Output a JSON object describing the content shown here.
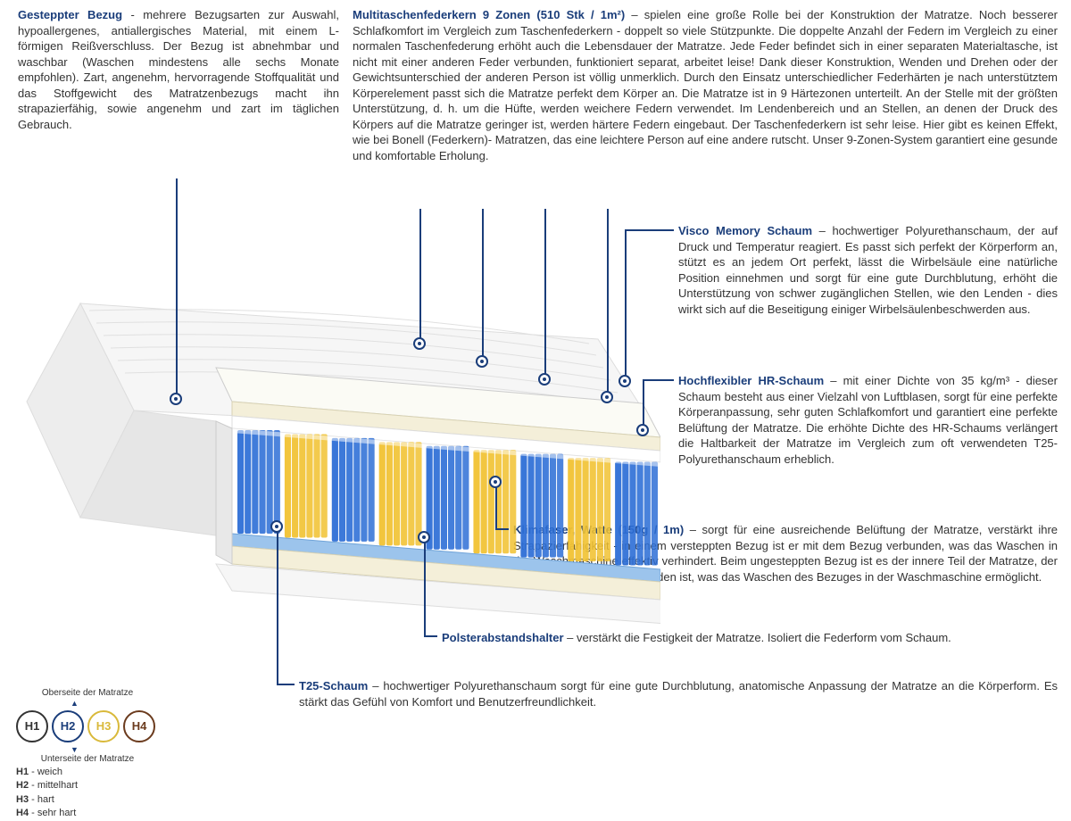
{
  "colors": {
    "title": "#1a3d7a",
    "text": "#333333",
    "line": "#1a3d7a",
    "spring_blue": "#2e6fd6",
    "spring_yellow": "#f1c233",
    "foam_cream": "#f4efd9",
    "foam_blue": "#9cc4ec",
    "cover": "#f2f2f2",
    "cover_shadow": "#dcdcdc"
  },
  "blocks": {
    "bezug": {
      "title": "Gesteppter Bezug",
      "text": " - mehrere Bezugsarten zur Auswahl, hypoallergenes, antiallergisches Material, mit einem L-förmigen Reißverschluss. Der Bezug ist abnehmbar  und waschbar (Waschen mindestens alle sechs Monate empfohlen). Zart, angenehm, hervorragende Stoffqualität und das Stoffgewicht des Matratzenbezugs macht ihn strapazierfähig, sowie angenehm und zart im täglichen Gebrauch."
    },
    "federkern": {
      "title": "Multitaschenfederkern 9 Zonen (510 Stk / 1m²)",
      "text": " –  spielen eine große Rolle bei der Konstruktion der Matratze. Noch besserer Schlafkomfort im Vergleich zum Taschenfederkern - doppelt so viele Stützpunkte. Die doppelte Anzahl der Federn im Vergleich zu einer normalen Taschenfederung erhöht auch die Lebensdauer der Matratze. Jede Feder befindet sich in einer separaten Materialtasche, ist nicht mit einer anderen Feder verbunden, funktioniert separat, arbeitet leise! Dank dieser Konstruktion, Wenden und Drehen oder der Gewichtsunterschied der anderen Person ist völlig unmerklich. Durch den Einsatz unterschiedlicher Federhärten je nach unterstütztem Körperelement passt sich die Matratze perfekt dem Körper an. Die Matratze ist in 9 Härtezonen unterteilt. An der Stelle mit der größten Unterstützung, d. h. um die Hüfte, werden weichere Federn verwendet. Im Lendenbereich und an Stellen, an denen der Druck des Körpers auf die Matratze geringer ist, werden härtere Federn eingebaut. Der Taschenfederkern ist sehr leise. Hier gibt es keinen Effekt, wie bei Bonell (Federkern)- Matratzen, das eine leichtere Person auf eine andere rutscht. Unser 9-Zonen-System garantiert eine gesunde und komfortable Erholung."
    },
    "visco": {
      "title": "Visco Memory Schaum",
      "text": " – hochwertiger Polyurethanschaum, der auf Druck und Temperatur reagiert. Es passt sich perfekt der Körperform an, stützt es an jedem Ort perfekt, lässt die Wirbelsäule eine natürliche Position einnehmen und sorgt für eine gute Durchblutung, erhöht die Unterstützung von schwer zugänglichen Stellen, wie den Lenden - dies wirkt sich auf die Beseitigung einiger  Wirbelsäulenbeschwerden aus."
    },
    "hr": {
      "title": "Hochflexibler HR-Schaum",
      "text": " –  mit einer Dichte von 35 kg/m³ - dieser Schaum besteht aus einer Vielzahl von Luftblasen, sorgt für eine perfekte Körperanpassung, sehr guten Schlafkomfort und garantiert eine perfekte Belüftung der Matratze. Die erhöhte Dichte des HR-Schaums verlängert die Haltbarkeit der Matratze im Vergleich zum oft verwendeten T25-Polyurethanschaum erheblich."
    },
    "klima": {
      "title": "Klimafaser, Watte (150g / 1m)",
      "text": " –  sorgt für eine ausreichende Belüftung der Matratze, verstärkt ihre Strapazierfähigkeit - in einem versteppten Bezug ist er mit dem Bezug verbunden, was das Waschen in der Waschmaschine effektiv verhindert. Beim ungesteppten Bezug ist es der innere Teil der Matratze, der nicht mit dem Bezug verbunden ist, was das Waschen des Bezuges in der Waschmaschine ermöglicht."
    },
    "polster": {
      "title": "Polsterabstandshalter",
      "text": " – verstärkt die Festigkeit der Matratze. Isoliert die Federform vom Schaum."
    },
    "t25": {
      "title": "T25-Schaum",
      "text": " – hochwertiger Polyurethanschaum sorgt für eine gute Durchblutung, anatomische Anpassung der Matratze an die Körperform. Es stärkt das Gefühl von Komfort und Benutzerfreundlichkeit."
    }
  },
  "hardness": {
    "top_label": "Oberseite der Matratze",
    "bottom_label": "Unterseite der Matratze",
    "items": [
      {
        "code": "H1",
        "color": "#333333"
      },
      {
        "code": "H2",
        "color": "#1a3d7a"
      },
      {
        "code": "H3",
        "color": "#d9b93a"
      },
      {
        "code": "H4",
        "color": "#6b3b1e"
      }
    ],
    "legend": [
      {
        "code": "H1",
        "desc": "weich"
      },
      {
        "code": "H2",
        "desc": "mittelhart"
      },
      {
        "code": "H3",
        "desc": "hart"
      },
      {
        "code": "H4",
        "desc": "sehr hart"
      }
    ]
  },
  "zone_pattern": [
    "B",
    "Y",
    "B",
    "Y",
    "B",
    "Y",
    "B",
    "Y",
    "B"
  ]
}
